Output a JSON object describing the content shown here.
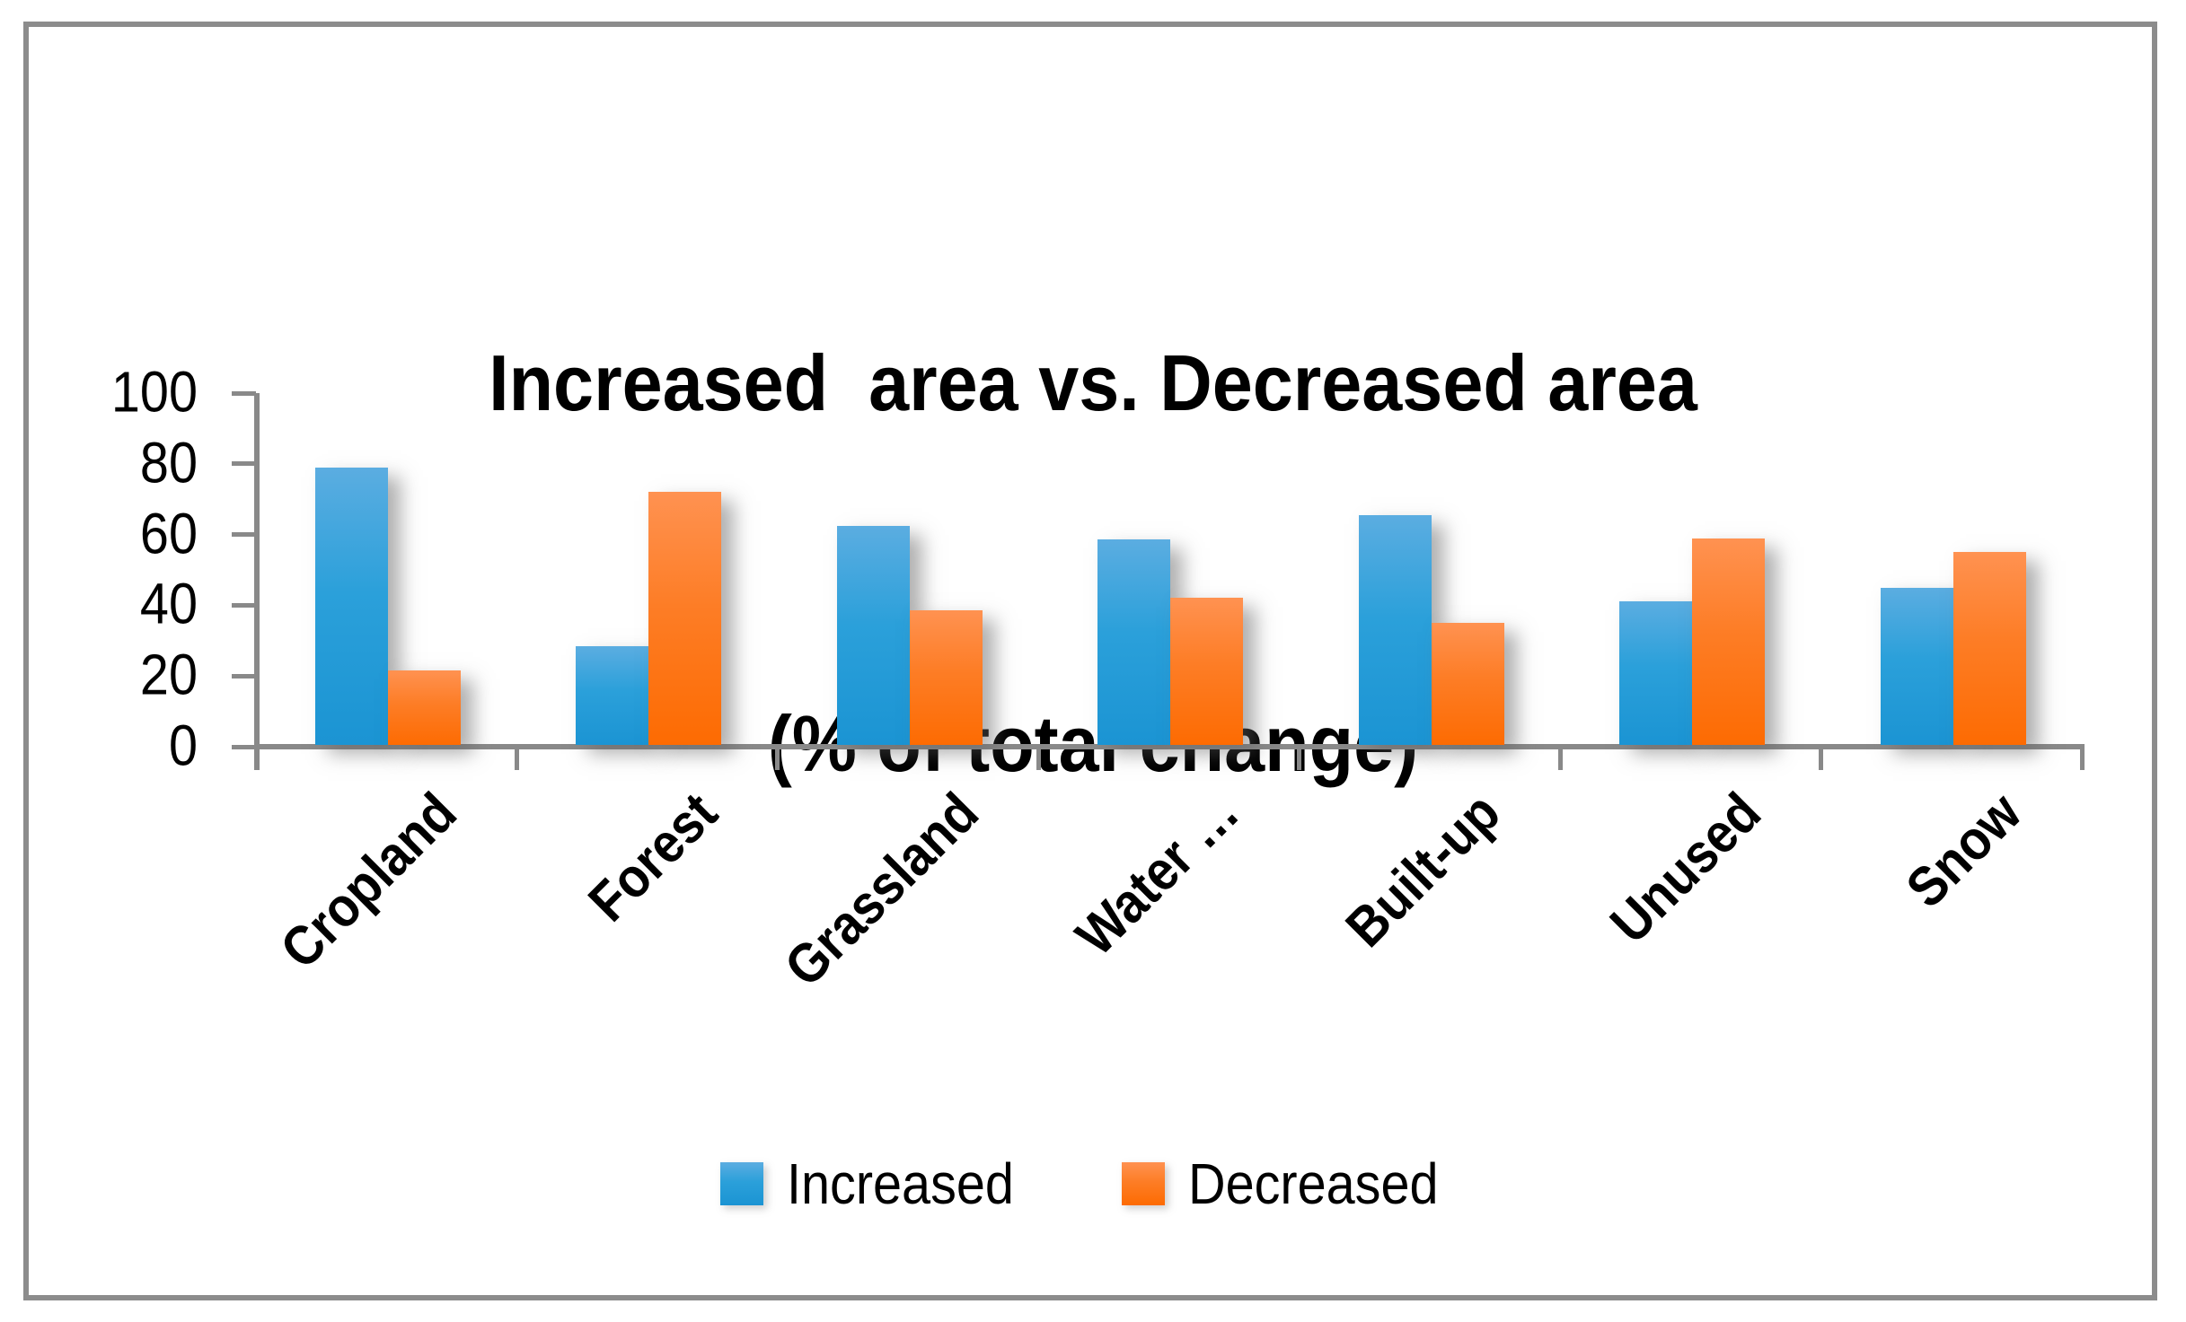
{
  "chart_data": {
    "type": "bar",
    "title": "Increased  area vs. Decreased area",
    "subtitle": "(% of total change)",
    "categories": [
      "Cropland",
      "Forest",
      "Grassland",
      "Water …",
      "Built-up",
      "Unused",
      "Snow"
    ],
    "series": [
      {
        "name": "Increased",
        "values": [
          78.5,
          28,
          62,
          58,
          65,
          40.5,
          44.5
        ],
        "color_top": "#5BADE1",
        "color_mid": "#2BA0DA",
        "color_bottom": "#1B94D3"
      },
      {
        "name": "Decreased",
        "values": [
          21,
          71.5,
          38,
          41.5,
          34.5,
          58.5,
          54.5
        ],
        "color_top": "#FF9251",
        "color_mid": "#FD7D26",
        "color_bottom": "#FD6B02"
      }
    ],
    "ylim": [
      0,
      100
    ],
    "yticks": [
      0,
      20,
      40,
      60,
      80,
      100
    ],
    "grid": false,
    "legend_position": "bottom",
    "axis_color": "#898989",
    "frame_color": "#8C8C8C",
    "text_color": "#000000"
  }
}
